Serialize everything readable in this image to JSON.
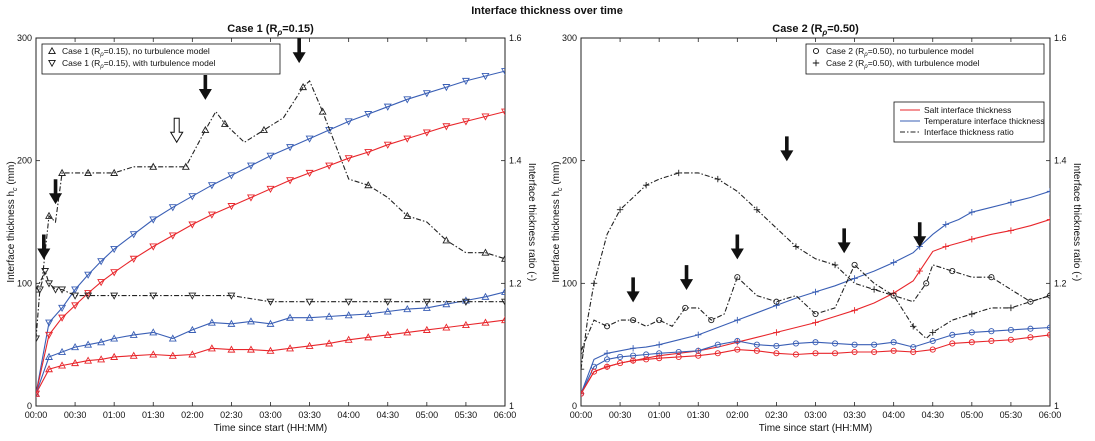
{
  "figure": {
    "title": "Interface thickness over time"
  },
  "colors": {
    "salt": "#e8262b",
    "temp": "#3a5fb5",
    "ratio": "#222222",
    "axis": "#222222"
  },
  "chart_data": [
    {
      "type": "line",
      "panel": "left",
      "title": "Case 1 (R",
      "title_sub": "ρ",
      "title_tail": "=0.15)",
      "xlabel": "Time since start (HH:MM)",
      "ylabel": "Interface thickness h",
      "ylabel_sub": "c",
      "ylabel_tail": " (mm)",
      "y2label": "Interface thickness ratio (-)",
      "xlim": [
        0,
        360
      ],
      "ylim": [
        0,
        300
      ],
      "y2lim": [
        1,
        1.6
      ],
      "xticks": [
        0,
        30,
        60,
        90,
        120,
        150,
        180,
        210,
        240,
        270,
        300,
        330,
        360
      ],
      "xtick_labels": [
        "00:00",
        "00:30",
        "01:00",
        "01:30",
        "02:00",
        "02:30",
        "03:00",
        "03:30",
        "04:00",
        "04:30",
        "05:00",
        "05:30",
        "06:00"
      ],
      "yticks": [
        0,
        100,
        200,
        300
      ],
      "y2ticks": [
        1,
        1.2,
        1.4,
        1.6
      ],
      "legend": [
        {
          "marker": "triangle-up",
          "label": "Case 1 (R",
          "sub": "ρ",
          "tail": "=0.15), no turbulence model"
        },
        {
          "marker": "triangle-down",
          "label": "Case 1 (R",
          "sub": "ρ",
          "tail": "=0.15), with turbulence model"
        }
      ],
      "legend_position": "top-left",
      "series": [
        {
          "name": "Case 1 (Rρ=0.15), with turbulence model",
          "quantity": "temp",
          "marker": "triangle-down",
          "axis": "left",
          "x": [
            0,
            10,
            20,
            30,
            40,
            50,
            60,
            75,
            90,
            105,
            120,
            135,
            150,
            165,
            180,
            195,
            210,
            225,
            240,
            255,
            270,
            285,
            300,
            315,
            330,
            345,
            360
          ],
          "y": [
            10,
            68,
            80,
            95,
            107,
            118,
            128,
            140,
            152,
            162,
            171,
            180,
            188,
            196,
            204,
            211,
            218,
            225,
            232,
            238,
            244,
            250,
            255,
            260,
            265,
            269,
            273
          ]
        },
        {
          "name": "Case 1 (Rρ=0.15), no turbulence model",
          "quantity": "salt",
          "marker": "triangle-down",
          "axis": "left",
          "x": [
            0,
            10,
            20,
            30,
            40,
            50,
            60,
            75,
            90,
            105,
            120,
            135,
            150,
            165,
            180,
            195,
            210,
            225,
            240,
            255,
            270,
            285,
            300,
            315,
            330,
            345,
            360
          ],
          "y": [
            10,
            58,
            72,
            82,
            92,
            101,
            109,
            120,
            130,
            139,
            148,
            156,
            163,
            170,
            177,
            184,
            190,
            196,
            202,
            207,
            213,
            218,
            223,
            228,
            232,
            236,
            240
          ]
        },
        {
          "name": "Temperature interface thickness (no turbulence)",
          "quantity": "temp",
          "marker": "triangle-up",
          "axis": "left",
          "x": [
            0,
            10,
            20,
            30,
            40,
            50,
            60,
            75,
            90,
            105,
            120,
            135,
            150,
            165,
            180,
            195,
            210,
            225,
            240,
            255,
            270,
            285,
            300,
            315,
            330,
            345,
            360
          ],
          "y": [
            10,
            40,
            44,
            48,
            50,
            52,
            55,
            58,
            60,
            55,
            62,
            68,
            67,
            69,
            67,
            72,
            72,
            73,
            74,
            75,
            77,
            79,
            80,
            83,
            86,
            89,
            93
          ]
        },
        {
          "name": "Salt interface thickness (no turbulence)",
          "quantity": "salt",
          "marker": "triangle-up",
          "axis": "left",
          "x": [
            0,
            10,
            20,
            30,
            40,
            50,
            60,
            75,
            90,
            105,
            120,
            135,
            150,
            165,
            180,
            195,
            210,
            225,
            240,
            255,
            270,
            285,
            300,
            315,
            330,
            345,
            360
          ],
          "y": [
            10,
            30,
            33,
            35,
            37,
            38,
            40,
            41,
            42,
            41,
            42,
            47,
            46,
            46,
            45,
            47,
            49,
            51,
            54,
            56,
            58,
            60,
            62,
            64,
            66,
            68,
            70
          ]
        },
        {
          "name": "Interface thickness ratio (no turbulence)",
          "quantity": "ratio",
          "marker": "triangle-up",
          "axis": "right",
          "x": [
            0,
            5,
            10,
            15,
            20,
            30,
            40,
            50,
            60,
            75,
            90,
            105,
            115,
            120,
            130,
            138,
            145,
            160,
            175,
            190,
            205,
            210,
            220,
            240,
            255,
            270,
            285,
            300,
            315,
            330,
            345,
            360
          ],
          "y": [
            1.19,
            1.21,
            1.31,
            1.3,
            1.38,
            1.38,
            1.38,
            1.38,
            1.38,
            1.39,
            1.39,
            1.39,
            1.39,
            1.41,
            1.45,
            1.48,
            1.46,
            1.43,
            1.45,
            1.47,
            1.52,
            1.53,
            1.48,
            1.37,
            1.36,
            1.34,
            1.31,
            1.3,
            1.27,
            1.25,
            1.25,
            1.24
          ]
        },
        {
          "name": "Interface thickness ratio (with turbulence)",
          "quantity": "ratio",
          "marker": "triangle-down",
          "axis": "right",
          "x": [
            0,
            3,
            7,
            10,
            15,
            20,
            30,
            40,
            60,
            90,
            120,
            150,
            180,
            210,
            240,
            270,
            300,
            330,
            360
          ],
          "y": [
            1.11,
            1.19,
            1.22,
            1.2,
            1.19,
            1.19,
            1.18,
            1.18,
            1.18,
            1.18,
            1.18,
            1.18,
            1.17,
            1.17,
            1.17,
            1.17,
            1.17,
            1.17,
            1.17
          ]
        }
      ],
      "annotations": [
        {
          "type": "arrow",
          "x": 6,
          "y2": 1.24,
          "style": "solid"
        },
        {
          "type": "arrow",
          "x": 15,
          "y2": 1.33,
          "style": "solid"
        },
        {
          "type": "arrow",
          "x": 108,
          "y2": 1.43,
          "style": "hollow"
        },
        {
          "type": "arrow",
          "x": 130,
          "y2": 1.5,
          "style": "solid"
        },
        {
          "type": "arrow",
          "x": 202,
          "y2": 1.56,
          "style": "solid"
        }
      ]
    },
    {
      "type": "line",
      "panel": "right",
      "title": "Case 2 (R",
      "title_sub": "ρ",
      "title_tail": "=0.50)",
      "xlabel": "Time since start (HH:MM)",
      "ylabel": "Interface thickness h",
      "ylabel_sub": "c",
      "ylabel_tail": " (mm)",
      "y2label": "Interface thickness ratio (-)",
      "xlim": [
        0,
        360
      ],
      "ylim": [
        0,
        300
      ],
      "y2lim": [
        1,
        1.6
      ],
      "xticks": [
        0,
        30,
        60,
        90,
        120,
        150,
        180,
        210,
        240,
        270,
        300,
        330,
        360
      ],
      "xtick_labels": [
        "00:00",
        "00:30",
        "01:00",
        "01:30",
        "02:00",
        "02:30",
        "03:00",
        "03:30",
        "04:00",
        "04:30",
        "05:00",
        "05:30",
        "06:00"
      ],
      "yticks": [
        0,
        100,
        200,
        300
      ],
      "y2ticks": [
        1,
        1.2,
        1.4,
        1.6
      ],
      "legend": [
        {
          "marker": "circle",
          "label": "Case 2 (R",
          "sub": "ρ",
          "tail": "=0.50), no turbulence model"
        },
        {
          "marker": "plus",
          "label": "Case 2 (R",
          "sub": "ρ",
          "tail": "=0.50), with turbulence model"
        }
      ],
      "legend2": [
        {
          "quantity": "salt",
          "label": "Salt interface thickness"
        },
        {
          "quantity": "temp",
          "label": "Temperature interface thickness"
        },
        {
          "quantity": "ratio",
          "label": "Interface thickness ratio"
        }
      ],
      "legend_position": "top-right",
      "series": [
        {
          "name": "Case 2 (Rρ=0.50), with turbulence model",
          "quantity": "temp",
          "marker": "plus",
          "axis": "left",
          "x": [
            0,
            10,
            20,
            30,
            40,
            50,
            60,
            75,
            90,
            105,
            120,
            135,
            150,
            165,
            180,
            195,
            210,
            225,
            240,
            255,
            260,
            270,
            280,
            290,
            300,
            315,
            330,
            345,
            360
          ],
          "y": [
            10,
            38,
            43,
            45,
            47,
            48,
            50,
            54,
            58,
            64,
            70,
            76,
            82,
            88,
            93,
            98,
            104,
            110,
            117,
            125,
            130,
            140,
            148,
            152,
            158,
            162,
            166,
            170,
            175
          ]
        },
        {
          "name": "Case 2 (Rρ=0.50), with turbulence model (salt)",
          "quantity": "salt",
          "marker": "plus",
          "axis": "left",
          "x": [
            0,
            10,
            20,
            30,
            40,
            50,
            60,
            75,
            90,
            105,
            120,
            135,
            150,
            165,
            180,
            195,
            210,
            225,
            240,
            255,
            260,
            270,
            280,
            290,
            300,
            315,
            330,
            345,
            360
          ],
          "y": [
            10,
            28,
            32,
            35,
            37,
            39,
            41,
            43,
            45,
            48,
            52,
            56,
            60,
            64,
            68,
            73,
            78,
            84,
            92,
            102,
            110,
            126,
            130,
            133,
            136,
            140,
            143,
            147,
            152
          ]
        },
        {
          "name": "Case 2 (Rρ=0.50), no turbulence model (temp)",
          "quantity": "temp",
          "marker": "circle",
          "axis": "left",
          "x": [
            0,
            10,
            20,
            30,
            40,
            50,
            60,
            75,
            90,
            105,
            120,
            135,
            150,
            165,
            180,
            195,
            210,
            225,
            240,
            255,
            270,
            285,
            300,
            315,
            330,
            345,
            360
          ],
          "y": [
            10,
            32,
            38,
            40,
            41,
            42,
            43,
            44,
            45,
            50,
            53,
            50,
            49,
            51,
            52,
            51,
            50,
            50,
            52,
            48,
            53,
            58,
            60,
            61,
            62,
            63,
            64
          ]
        },
        {
          "name": "Case 2 (Rρ=0.50), no turbulence model (salt)",
          "quantity": "salt",
          "marker": "circle",
          "axis": "left",
          "x": [
            0,
            10,
            20,
            30,
            40,
            50,
            60,
            75,
            90,
            105,
            120,
            135,
            150,
            165,
            180,
            195,
            210,
            225,
            240,
            255,
            270,
            285,
            300,
            315,
            330,
            345,
            360
          ],
          "y": [
            10,
            28,
            32,
            35,
            37,
            38,
            39,
            40,
            41,
            43,
            46,
            45,
            43,
            42,
            43,
            43,
            44,
            44,
            45,
            44,
            46,
            51,
            52,
            53,
            54,
            56,
            58
          ]
        },
        {
          "name": "Interface thickness ratio (with turbulence)",
          "quantity": "ratio",
          "marker": "plus",
          "axis": "right",
          "x": [
            0,
            5,
            10,
            20,
            30,
            40,
            50,
            60,
            75,
            90,
            105,
            120,
            135,
            150,
            165,
            180,
            195,
            210,
            225,
            240,
            255,
            265,
            270,
            285,
            300,
            315,
            330,
            345,
            360
          ],
          "y": [
            1.06,
            1.14,
            1.2,
            1.28,
            1.32,
            1.34,
            1.36,
            1.37,
            1.38,
            1.38,
            1.37,
            1.35,
            1.32,
            1.29,
            1.26,
            1.24,
            1.23,
            1.2,
            1.19,
            1.18,
            1.13,
            1.11,
            1.12,
            1.14,
            1.15,
            1.16,
            1.16,
            1.17,
            1.18
          ]
        },
        {
          "name": "Interface thickness ratio (no turbulence)",
          "quantity": "ratio",
          "marker": "circle",
          "axis": "right",
          "x": [
            0,
            10,
            20,
            30,
            40,
            50,
            60,
            70,
            80,
            90,
            100,
            110,
            120,
            135,
            150,
            165,
            180,
            195,
            210,
            225,
            240,
            255,
            265,
            270,
            285,
            300,
            315,
            330,
            345,
            360
          ],
          "y": [
            1.09,
            1.14,
            1.13,
            1.14,
            1.14,
            1.13,
            1.14,
            1.13,
            1.16,
            1.16,
            1.14,
            1.15,
            1.21,
            1.18,
            1.17,
            1.18,
            1.15,
            1.16,
            1.23,
            1.2,
            1.18,
            1.17,
            1.2,
            1.23,
            1.22,
            1.21,
            1.21,
            1.19,
            1.17,
            1.18
          ]
        }
      ],
      "annotations": [
        {
          "type": "arrow",
          "x": 40,
          "y2": 1.17,
          "style": "solid"
        },
        {
          "type": "arrow",
          "x": 81,
          "y2": 1.19,
          "style": "solid"
        },
        {
          "type": "arrow",
          "x": 120,
          "y2": 1.24,
          "style": "solid"
        },
        {
          "type": "arrow",
          "x": 158,
          "y2": 1.4,
          "style": "solid"
        },
        {
          "type": "arrow",
          "x": 202,
          "y2": 1.25,
          "style": "solid"
        },
        {
          "type": "arrow",
          "x": 260,
          "y2": 1.26,
          "style": "solid"
        }
      ]
    }
  ]
}
